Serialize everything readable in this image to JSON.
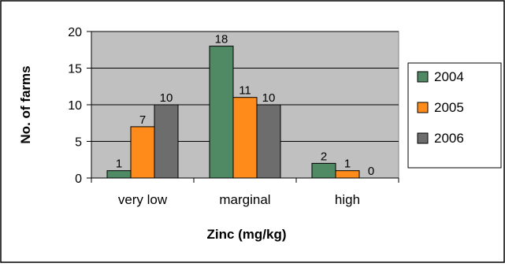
{
  "chart_data": {
    "type": "bar",
    "categories": [
      "very low",
      "marginal",
      "high"
    ],
    "series": [
      {
        "name": "2004",
        "values": [
          1,
          18,
          2
        ],
        "color": "#4f8a64"
      },
      {
        "name": "2005",
        "values": [
          7,
          11,
          1
        ],
        "color": "#ff8c1a"
      },
      {
        "name": "2006",
        "values": [
          10,
          10,
          0
        ],
        "color": "#6d6d6d"
      }
    ],
    "title": "",
    "xlabel": "Zinc (mg/kg)",
    "ylabel": "No. of farms",
    "ylim": [
      0,
      20
    ],
    "yticks": [
      0,
      5,
      10,
      15,
      20
    ],
    "grid": true,
    "legend_position": "right",
    "plot_background": "#c0c0c0"
  }
}
